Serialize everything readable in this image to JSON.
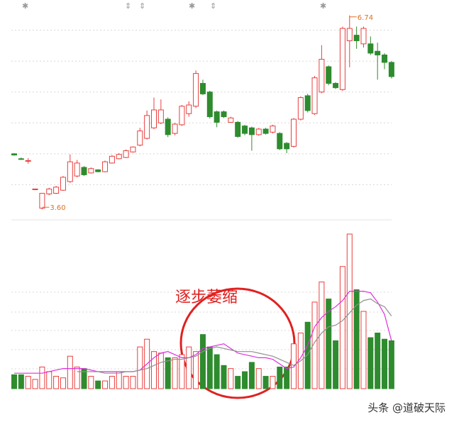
{
  "chart_data": {
    "type": "candlestick",
    "up_color": "#e8403f",
    "down_color": "#2e8b2e",
    "open": [
      4.5,
      4.42,
      4.39,
      3.93,
      3.62,
      3.85,
      3.86,
      3.91,
      4.05,
      4.14,
      4.28,
      4.19,
      4.24,
      4.21,
      4.35,
      4.42,
      4.44,
      4.53,
      4.64,
      4.75,
      4.92,
      5.0,
      5.06,
      4.83,
      4.97,
      5.15,
      5.27,
      5.64,
      5.5,
      5.18,
      5.18,
      5.01,
      5.01,
      4.95,
      4.92,
      4.81,
      4.9,
      4.85,
      4.83,
      4.67,
      4.62,
      5.06,
      5.44,
      5.15,
      5.5,
      5.91,
      5.64,
      5.54,
      6.33,
      6.42,
      6.28,
      6.28,
      6.16,
      6.1,
      5.98
    ],
    "high": [
      4.51,
      4.44,
      4.43,
      3.93,
      3.86,
      3.95,
      3.98,
      4.14,
      4.49,
      4.4,
      4.3,
      4.28,
      4.25,
      4.39,
      4.48,
      4.51,
      4.57,
      4.62,
      4.92,
      5.2,
      5.41,
      5.38,
      5.09,
      5.0,
      5.29,
      5.35,
      5.85,
      5.7,
      5.52,
      5.2,
      5.2,
      5.1,
      5.03,
      4.97,
      4.94,
      4.92,
      4.92,
      4.97,
      4.85,
      4.69,
      5.08,
      5.43,
      5.47,
      5.76,
      6.26,
      5.93,
      5.66,
      6.56,
      6.74,
      6.56,
      6.56,
      6.4,
      6.3,
      6.13,
      6.0
    ],
    "low": [
      4.47,
      4.4,
      4.34,
      3.93,
      3.6,
      3.83,
      3.85,
      3.9,
      4.03,
      4.12,
      4.14,
      4.18,
      4.2,
      4.2,
      4.34,
      4.41,
      4.43,
      4.52,
      4.62,
      4.73,
      4.9,
      4.98,
      4.77,
      4.8,
      4.95,
      5.1,
      5.24,
      5.45,
      5.07,
      4.93,
      5.08,
      5.0,
      4.76,
      4.8,
      4.55,
      4.79,
      4.81,
      4.83,
      4.56,
      4.51,
      4.6,
      5.04,
      5.17,
      5.13,
      5.48,
      5.61,
      5.55,
      5.52,
      5.9,
      6.2,
      6.22,
      6.1,
      5.7,
      5.87,
      5.72
    ],
    "close": [
      4.48,
      4.41,
      4.39,
      3.93,
      3.86,
      3.93,
      3.96,
      4.12,
      4.37,
      4.35,
      4.16,
      4.26,
      4.21,
      4.37,
      4.46,
      4.49,
      4.55,
      4.61,
      4.87,
      5.12,
      5.21,
      5.21,
      4.81,
      4.98,
      5.27,
      5.29,
      5.8,
      5.47,
      5.1,
      5.01,
      5.1,
      5.08,
      4.78,
      4.83,
      4.81,
      4.9,
      4.83,
      4.95,
      4.58,
      4.58,
      5.06,
      5.41,
      5.2,
      5.73,
      6.03,
      5.64,
      5.57,
      6.53,
      6.53,
      6.33,
      6.53,
      6.13,
      6.1,
      5.98,
      5.75
    ],
    "volume": [
      9,
      9,
      8,
      6,
      14,
      11,
      8,
      7,
      21,
      14,
      13,
      8,
      5,
      5,
      8,
      11,
      8,
      8,
      27,
      32,
      24,
      23,
      20,
      20,
      22,
      27,
      24,
      35,
      27,
      22,
      15,
      13,
      8,
      11,
      17,
      13,
      8,
      8,
      14,
      14,
      29,
      36,
      43,
      56,
      69,
      58,
      31,
      79,
      100,
      64,
      50,
      33,
      36,
      32,
      31
    ],
    "volume_ma": [
      {
        "color": "#e030e0",
        "values": [
          10,
          10,
          10,
          10,
          10,
          11,
          12,
          13,
          13,
          13,
          13,
          12,
          11,
          11,
          11,
          11,
          11,
          11,
          12,
          16,
          20,
          23,
          24,
          22,
          20,
          20,
          22,
          26,
          27,
          28,
          29,
          26,
          23,
          22,
          21,
          20,
          20,
          19,
          16,
          13,
          14,
          20,
          28,
          40,
          46,
          50,
          53,
          57,
          63,
          63,
          63,
          62,
          56,
          48,
          31
        ]
      },
      {
        "color": "#909090",
        "values": [
          null,
          null,
          null,
          null,
          null,
          null,
          null,
          null,
          null,
          11,
          11,
          11,
          11,
          10,
          10,
          10,
          11,
          11,
          12,
          13,
          15,
          17,
          18,
          19,
          19,
          20,
          21,
          24,
          26,
          27,
          26,
          25,
          24,
          24,
          24,
          23,
          22,
          21,
          19,
          17,
          15,
          18,
          22,
          30,
          36,
          40,
          41,
          44,
          49,
          54,
          57,
          58,
          55,
          53,
          47
        ]
      }
    ],
    "ylim": [
      3.43,
      6.99
    ],
    "yticks": [
      4,
      4.5,
      5,
      5.5,
      6,
      6.5
    ],
    "volume_ylim": [
      0,
      100
    ],
    "grid": true,
    "annotations": [
      "3.60",
      "6.74",
      "逐步萎缩"
    ],
    "watermark": "头条 @道破天际"
  }
}
